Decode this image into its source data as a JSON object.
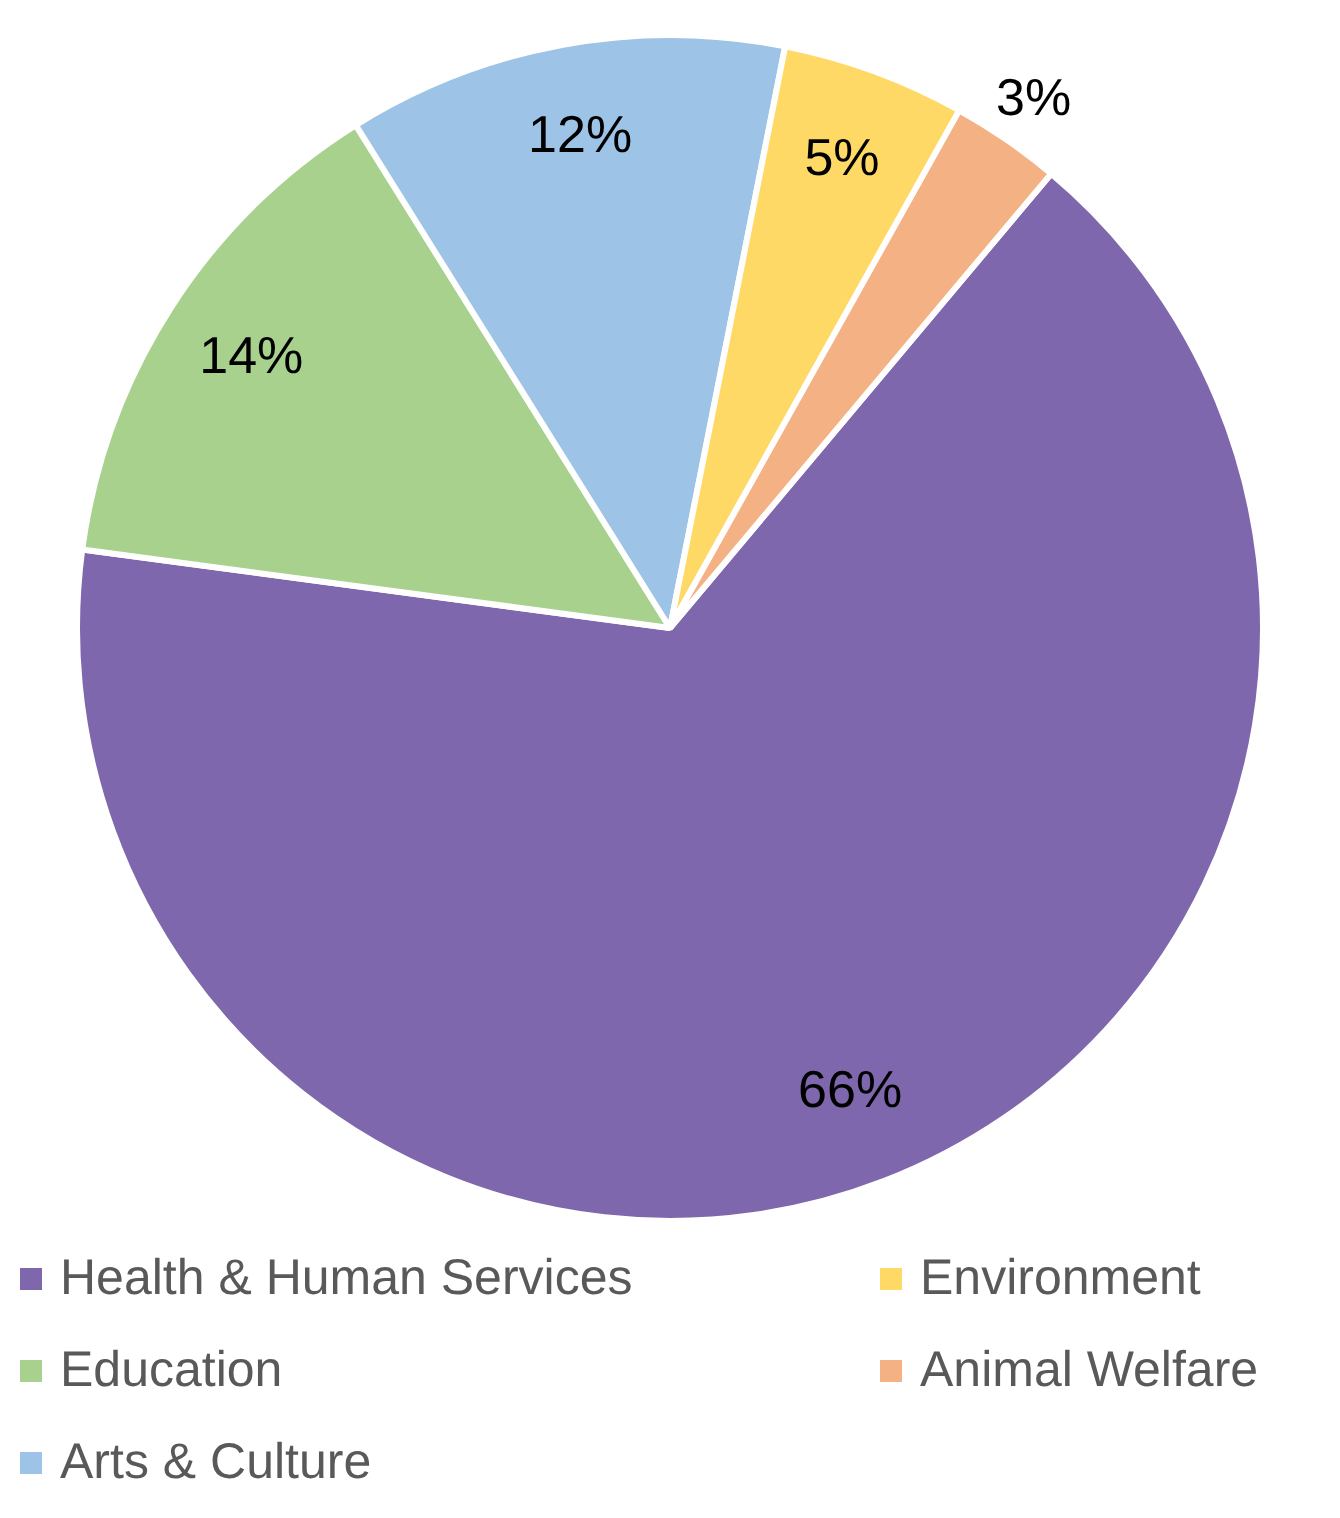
{
  "chart_data": {
    "type": "pie",
    "categories": [
      "Health & Human Services",
      "Education",
      "Arts & Culture",
      "Environment",
      "Animal Welfare"
    ],
    "values": [
      66,
      14,
      12,
      5,
      3
    ],
    "colors": [
      "#7e67ad",
      "#a9d18e",
      "#9dc3e6",
      "#ffd966",
      "#f4b183"
    ],
    "value_labels": [
      "66%",
      "14%",
      "12%",
      "5%",
      "3%"
    ],
    "legend": "bottom"
  }
}
